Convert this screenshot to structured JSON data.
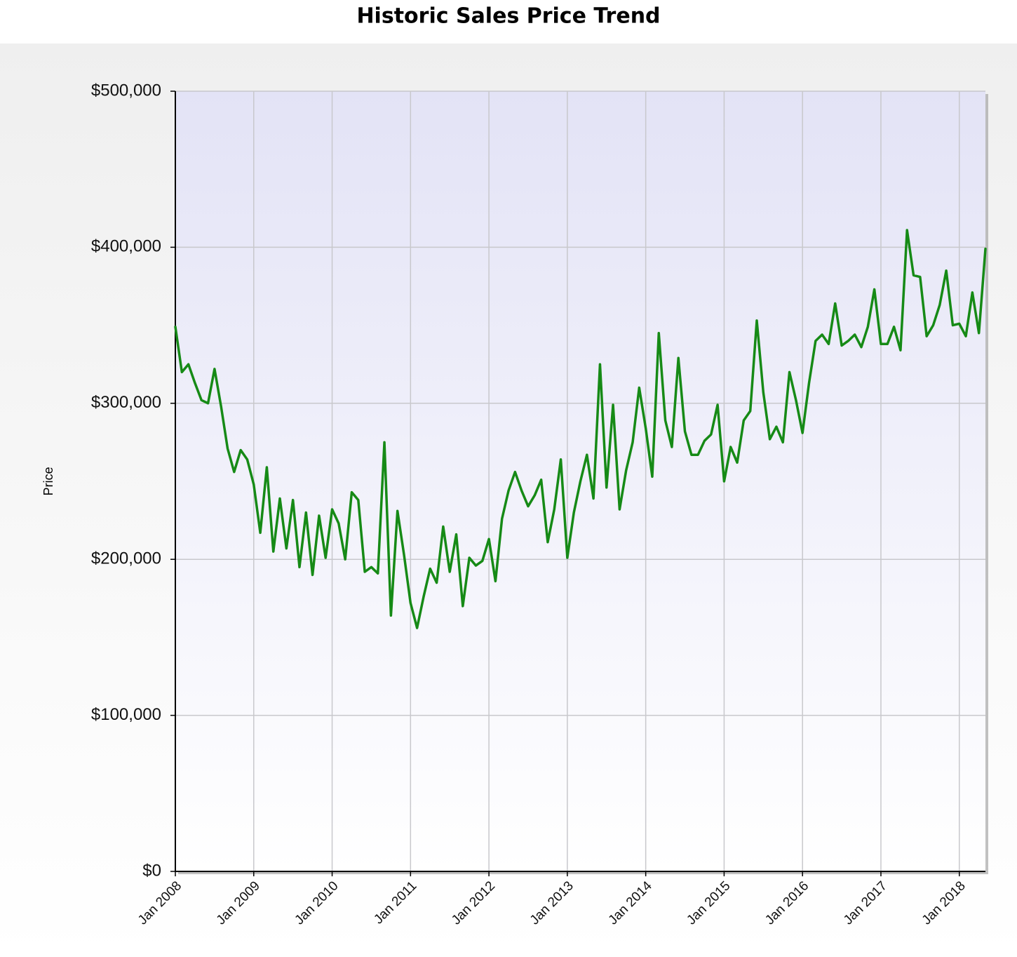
{
  "chart_data": {
    "type": "line",
    "title": "Historic Sales Price Trend",
    "ylabel": "Price",
    "categories": [
      "Jan 2008",
      null,
      null,
      null,
      null,
      null,
      null,
      null,
      null,
      null,
      null,
      null,
      "Jan 2009",
      null,
      null,
      null,
      null,
      null,
      null,
      null,
      null,
      null,
      null,
      null,
      "Jan 2010",
      null,
      null,
      null,
      null,
      null,
      null,
      null,
      null,
      null,
      null,
      null,
      "Jan 2011",
      null,
      null,
      null,
      null,
      null,
      null,
      null,
      null,
      null,
      null,
      null,
      "Jan 2012",
      null,
      null,
      null,
      null,
      null,
      null,
      null,
      null,
      null,
      null,
      null,
      "Jan 2013",
      null,
      null,
      null,
      null,
      null,
      null,
      null,
      null,
      null,
      null,
      null,
      "Jan 2014",
      null,
      null,
      null,
      null,
      null,
      null,
      null,
      null,
      null,
      null,
      null,
      "Jan 2015",
      null,
      null,
      null,
      null,
      null,
      null,
      null,
      null,
      null,
      null,
      null,
      "Jan 2016",
      null,
      null,
      null,
      null,
      null,
      null,
      null,
      null,
      null,
      null,
      null,
      "Jan 2017",
      null,
      null,
      null,
      null,
      null,
      null,
      null,
      null,
      null,
      null,
      null,
      "Jan 2018",
      null,
      null,
      null,
      null
    ],
    "values": [
      349000,
      320000,
      325000,
      313000,
      302000,
      300000,
      322000,
      298000,
      271000,
      256000,
      270000,
      264000,
      248000,
      217000,
      259000,
      205000,
      239000,
      207000,
      238000,
      195000,
      230000,
      190000,
      228000,
      201000,
      232000,
      223000,
      200000,
      243000,
      238000,
      192000,
      195000,
      191000,
      275000,
      164000,
      231000,
      203000,
      172000,
      156000,
      176000,
      194000,
      185000,
      221000,
      192000,
      216000,
      170000,
      201000,
      196000,
      199000,
      213000,
      186000,
      226000,
      244000,
      256000,
      244000,
      234000,
      241000,
      251000,
      211000,
      232000,
      264000,
      201000,
      230000,
      250000,
      267000,
      239000,
      325000,
      246000,
      299000,
      232000,
      257000,
      275000,
      310000,
      284000,
      253000,
      345000,
      289000,
      272000,
      329000,
      282000,
      267000,
      267000,
      276000,
      280000,
      299000,
      250000,
      272000,
      262000,
      289000,
      295000,
      353000,
      307000,
      277000,
      285000,
      275000,
      320000,
      302000,
      281000,
      313000,
      340000,
      344000,
      338000,
      364000,
      337000,
      340000,
      344000,
      336000,
      349000,
      373000,
      338000,
      338000,
      349000,
      334000,
      411000,
      382000,
      381000,
      343000,
      350000,
      363000,
      385000,
      350000,
      351000,
      343000,
      371000,
      345000,
      399000
    ],
    "color": "#168a16",
    "ylim": [
      0,
      500000
    ],
    "yticks": [
      {
        "value": 0,
        "label": "$0"
      },
      {
        "value": 100000,
        "label": "$100,000"
      },
      {
        "value": 200000,
        "label": "$200,000"
      },
      {
        "value": 300000,
        "label": "$300,000"
      },
      {
        "value": 400000,
        "label": "$400,000"
      },
      {
        "value": 500000,
        "label": "$500,000"
      }
    ],
    "grid": true
  }
}
